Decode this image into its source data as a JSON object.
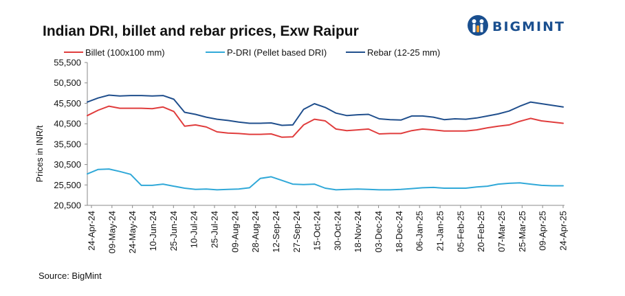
{
  "header": {
    "title": "Indian DRI, billet and rebar prices, Exw  Raipur",
    "brand": "BIGMINT"
  },
  "footer": {
    "source": "Source: BigMint"
  },
  "colors": {
    "billet": "#e03c3c",
    "pdri": "#2fa8d8",
    "rebar": "#1f4e8c",
    "axis": "#888888"
  },
  "chart_data": {
    "type": "line",
    "title": "Indian DRI, billet and rebar prices, Exw  Raipur",
    "xlabel": "",
    "ylabel": "Prices in INR/t",
    "ylim": [
      20500,
      55500
    ],
    "yticks": [
      "20,500",
      "25,500",
      "30,500",
      "35,500",
      "40,500",
      "45,500",
      "50,500",
      "55,500"
    ],
    "ytick_values": [
      20500,
      25500,
      30500,
      35500,
      40500,
      45500,
      50500,
      55500
    ],
    "xticks": [
      "24-Apr-24",
      "09-May-24",
      "24-May-24",
      "10-Jun-24",
      "25-Jun-24",
      "10-Jul-24",
      "25-Jul-24",
      "09-Aug-24",
      "28-Aug-24",
      "12-Sep-24",
      "27-Sep-24",
      "15-Oct-24",
      "30-Oct-24",
      "18-Nov-24",
      "03-Dec-24",
      "18-Dec-24",
      "06-Jan-25",
      "21-Jan-25",
      "05-Feb-25",
      "20-Feb-25",
      "07-Mar-25",
      "25-Mar-25",
      "09-Apr-25",
      "24-Apr-25"
    ],
    "legend_position": "top",
    "grid": false,
    "series": [
      {
        "name": "Billet (100x100 mm)",
        "key": "billet",
        "values": [
          42500,
          43800,
          44800,
          44300,
          44300,
          44300,
          44200,
          44600,
          43500,
          39900,
          40200,
          39700,
          38500,
          38200,
          38100,
          37900,
          37900,
          38000,
          37200,
          37300,
          40200,
          41600,
          41200,
          39200,
          38800,
          39000,
          39200,
          38000,
          38100,
          38100,
          38800,
          39200,
          39000,
          38700,
          38700,
          38700,
          39000,
          39500,
          39900,
          40200,
          41100,
          41800,
          41200,
          40900,
          40600
        ]
      },
      {
        "name": "P-DRI (Pellet based DRI)",
        "key": "pdri",
        "values": [
          28200,
          29300,
          29400,
          28800,
          28100,
          25400,
          25400,
          25700,
          25200,
          24700,
          24400,
          24500,
          24300,
          24400,
          24500,
          24800,
          27100,
          27500,
          26600,
          25700,
          25600,
          25700,
          24700,
          24300,
          24400,
          24500,
          24400,
          24300,
          24300,
          24400,
          24600,
          24800,
          24900,
          24700,
          24700,
          24700,
          25000,
          25200,
          25700,
          25900,
          26000,
          25700,
          25400,
          25300,
          25300
        ]
      },
      {
        "name": "Rebar (12-25 mm)",
        "key": "rebar",
        "values": [
          45800,
          46800,
          47500,
          47300,
          47400,
          47400,
          47300,
          47400,
          46500,
          43300,
          42800,
          42100,
          41600,
          41300,
          40900,
          40600,
          40600,
          40700,
          40100,
          40200,
          44000,
          45400,
          44500,
          43100,
          42500,
          42700,
          42800,
          41700,
          41500,
          41400,
          42400,
          42400,
          42100,
          41500,
          41700,
          41600,
          41900,
          42400,
          42900,
          43600,
          44800,
          45800,
          45400,
          45000,
          44600
        ]
      }
    ]
  }
}
